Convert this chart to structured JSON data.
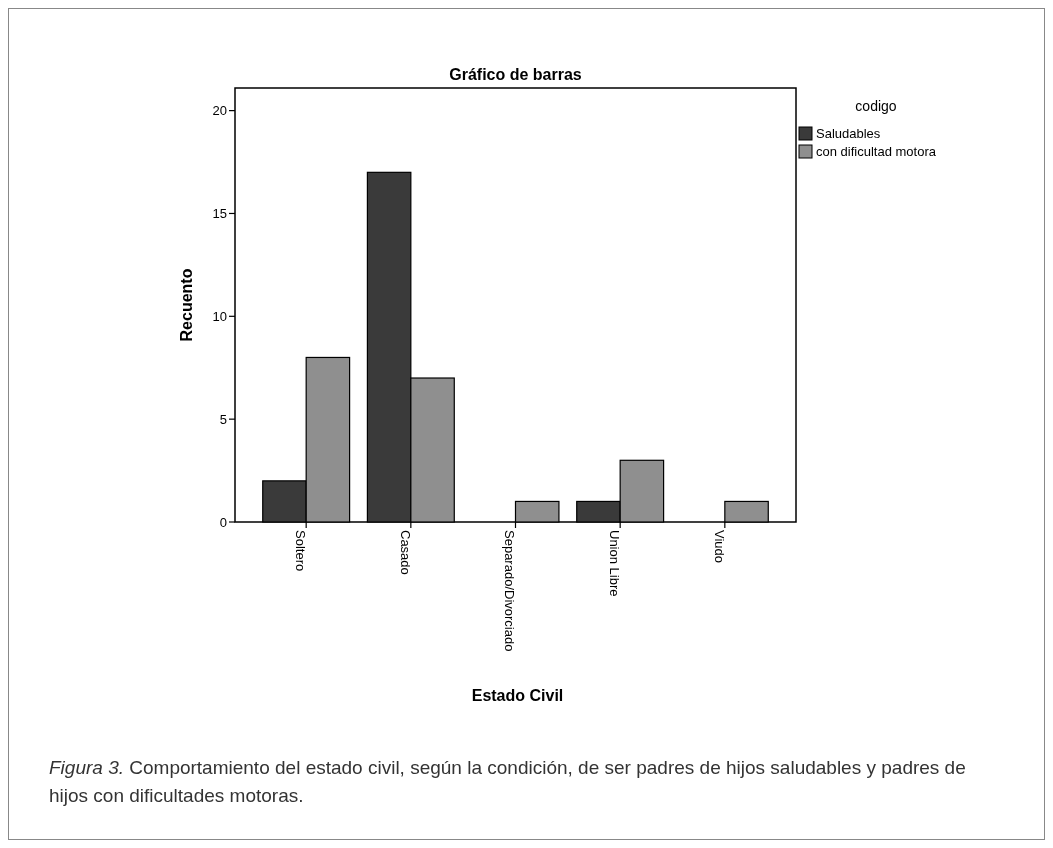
{
  "chart_data": {
    "type": "bar",
    "title": "Gráfico de barras",
    "xlabel": "Estado Civil",
    "ylabel": "Recuento",
    "legend_title": "codigo",
    "categories": [
      "Soltero",
      "Casado",
      "Separado/Divorciado",
      "Union Libre",
      "Viudo"
    ],
    "series": [
      {
        "name": "Saludables",
        "color": "#3a3a3a",
        "values": [
          2,
          17,
          null,
          1,
          null
        ]
      },
      {
        "name": "con dificultad motora",
        "color": "#8f8f8f",
        "values": [
          8,
          7,
          1,
          3,
          1
        ]
      }
    ],
    "ylim": [
      0,
      21.1
    ],
    "yticks": [
      0,
      5,
      10,
      15,
      20
    ],
    "grid": false,
    "legend": "right",
    "annotations": [
      "Figura 3. Comportamiento del estado civil, según la condición, de ser padres de hijos saludables y padres de hijos con dificultades motoras."
    ]
  }
}
